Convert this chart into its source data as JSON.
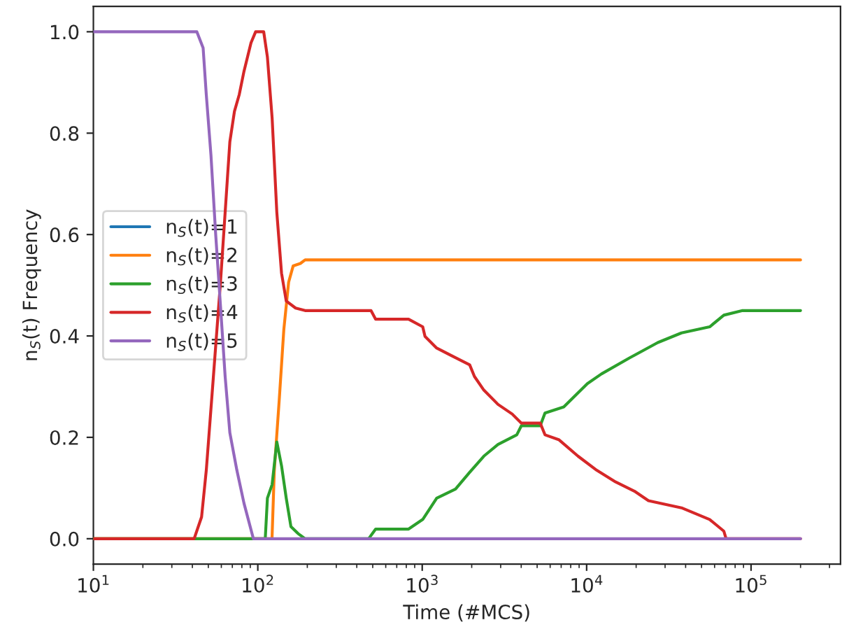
{
  "chart_data": {
    "type": "line",
    "xlabel": "Time (#MCS)",
    "ylabel": "n$_{S}$(t) Frequency",
    "log": "x",
    "xlim": [
      10,
      350000
    ],
    "ylim": [
      -0.05,
      1.05
    ],
    "xticks": [
      {
        "value": 10,
        "label": "10$^{1}$"
      },
      {
        "value": 100,
        "label": "10$^{2}$"
      },
      {
        "value": 1000,
        "label": "10$^{3}$"
      },
      {
        "value": 10000,
        "label": "10$^{4}$"
      },
      {
        "value": 100000,
        "label": "10$^{5}$"
      }
    ],
    "yticks": [
      {
        "value": 0,
        "label": "0.0"
      },
      {
        "value": 0.2,
        "label": "0.2"
      },
      {
        "value": 0.4,
        "label": "0.4"
      },
      {
        "value": 0.6,
        "label": "0.6"
      },
      {
        "value": 0.8,
        "label": "0.8"
      },
      {
        "value": 1.0,
        "label": "1.0"
      }
    ],
    "grid": false,
    "legend": "center left",
    "marker": "none",
    "line_style": "solid",
    "series": [
      {
        "name": "n$_{S}$(t)=1",
        "color": "#1f77b4"
      },
      {
        "name": "n$_{S}$(t)=2",
        "color": "#ff7f0e",
        "x": [
          10,
          122,
          126,
          135,
          144,
          154,
          164,
          181.5,
          194,
          200000
        ],
        "values": [
          0,
          0,
          0.135,
          0.274,
          0.413,
          0.506,
          0.538,
          0.543,
          0.55,
          0.55
        ]
      },
      {
        "name": "n$_{S}$(t)=3",
        "color": "#2ca02c",
        "x": [
          10,
          111,
          114.4,
          122.2,
          130.5,
          139.4,
          148.9,
          159,
          176,
          194,
          472,
          521,
          826,
          1007,
          1225,
          1594,
          1944,
          2372,
          2890,
          3760,
          4011,
          5224,
          5580,
          7260,
          10100,
          12300,
          18300,
          27100,
          37740,
          56000,
          68300,
          88800,
          200000
        ],
        "values": [
          0,
          0,
          0.08,
          0.107,
          0.191,
          0.144,
          0.08,
          0.024,
          0.01,
          0,
          0,
          0.019,
          0.019,
          0.038,
          0.08,
          0.098,
          0.131,
          0.163,
          0.186,
          0.205,
          0.223,
          0.223,
          0.248,
          0.26,
          0.306,
          0.325,
          0.357,
          0.387,
          0.406,
          0.418,
          0.441,
          0.45,
          0.45
        ]
      },
      {
        "name": "n$_{S}$(t)=4",
        "color": "#d62728",
        "x": [
          10,
          41,
          45.5,
          48.6,
          53.7,
          59.3,
          63.3,
          67.6,
          72.1,
          77.1,
          82.4,
          90.9,
          97,
          108.6,
          114.4,
          122.2,
          130.5,
          139.4,
          148.9,
          169.8,
          194,
          488,
          521,
          826,
          1007,
          1040,
          1225,
          1594,
          1944,
          2078,
          2372,
          2890,
          3524,
          4011,
          5224,
          5580,
          6800,
          8850,
          11530,
          15000,
          19500,
          23770,
          37740,
          56000,
          68300,
          70500,
          200000
        ],
        "values": [
          0,
          0,
          0.043,
          0.135,
          0.32,
          0.506,
          0.644,
          0.783,
          0.843,
          0.876,
          0.922,
          0.978,
          1.0,
          1.0,
          0.95,
          0.83,
          0.644,
          0.524,
          0.469,
          0.455,
          0.45,
          0.45,
          0.433,
          0.433,
          0.418,
          0.399,
          0.376,
          0.357,
          0.343,
          0.32,
          0.293,
          0.265,
          0.246,
          0.228,
          0.228,
          0.205,
          0.195,
          0.163,
          0.135,
          0.112,
          0.094,
          0.075,
          0.061,
          0.038,
          0.015,
          0,
          0
        ]
      },
      {
        "name": "n$_{S}$(t)=5",
        "color": "#9467bd",
        "x": [
          10,
          42.6,
          46.5,
          48.6,
          51.9,
          55.5,
          59.3,
          63.3,
          67.6,
          74.6,
          82.4,
          94,
          200000
        ],
        "values": [
          1.0,
          1.0,
          0.968,
          0.876,
          0.756,
          0.598,
          0.459,
          0.32,
          0.209,
          0.135,
          0.07,
          0,
          0
        ]
      }
    ]
  }
}
